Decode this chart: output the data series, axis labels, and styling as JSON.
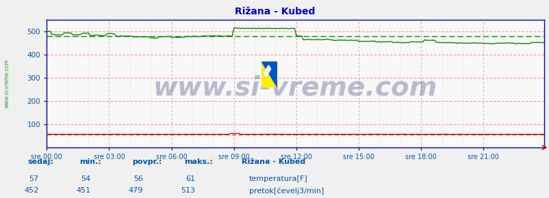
{
  "title": "Rižana - Kubed",
  "bg_color": "#f0f0f0",
  "plot_bg_color": "#f8f8f8",
  "title_color": "#0000cc",
  "axis_color": "#0000aa",
  "tick_color": "#0055aa",
  "x_ticks": [
    "sre 00:00",
    "sre 03:00",
    "sre 06:00",
    "sre 09:00",
    "sre 12:00",
    "sre 15:00",
    "sre 18:00",
    "sre 21:00"
  ],
  "x_tick_pos": [
    0,
    36,
    72,
    108,
    144,
    180,
    216,
    252
  ],
  "n_points": 288,
  "ylim": [
    0,
    550
  ],
  "yticks": [
    100,
    200,
    300,
    400,
    500
  ],
  "temp_color": "#cc0000",
  "flow_color": "#008800",
  "flow_avg_dashed_color": "#008800",
  "temp_avg_dashed_color": "#ff0000",
  "watermark_text": "www.si-vreme.com",
  "watermark_color": "#1a1a6e",
  "watermark_alpha": 0.28,
  "watermark_fontsize": 28,
  "sidebar_text": "www.si-vreme.com",
  "sidebar_color": "#007700",
  "temp_sedaj": 57,
  "temp_min": 54,
  "temp_povpr": 56,
  "temp_maks": 61,
  "flow_sedaj": 452,
  "flow_min": 451,
  "flow_povpr": 479,
  "flow_maks": 513,
  "legend_title": "Rižana - Kubed",
  "legend_temp": "temperatura[F]",
  "legend_flow": "pretok[čevelj3/min]",
  "label_sedaj": "sedaj:",
  "label_min": "min.:",
  "label_povpr": "povpr.:",
  "label_maks": "maks.:"
}
